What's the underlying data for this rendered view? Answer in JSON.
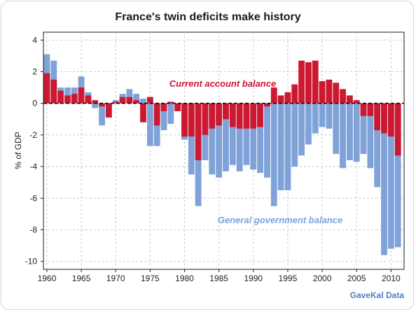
{
  "chart_data": {
    "type": "bar",
    "title": "France's twin deficits make history",
    "ylabel": "% of GDP",
    "xlabel": "",
    "ylim": [
      -10.5,
      4.5
    ],
    "yticks": [
      4,
      2,
      0,
      -2,
      -4,
      -6,
      -8,
      -10
    ],
    "xticks": [
      1960,
      1965,
      1970,
      1975,
      1980,
      1985,
      1990,
      1995,
      2000,
      2005,
      2010
    ],
    "grid": true,
    "legend": "none",
    "annotations": {
      "current_account": "Current account balance",
      "general_government": "General government balance"
    },
    "source": "GaveKal Data",
    "colors": {
      "current_account": "#cc1830",
      "general_government": "#7fa3d8"
    },
    "x": [
      1960,
      1961,
      1962,
      1963,
      1964,
      1965,
      1966,
      1967,
      1968,
      1969,
      1970,
      1971,
      1972,
      1973,
      1974,
      1975,
      1976,
      1977,
      1978,
      1979,
      1980,
      1981,
      1982,
      1983,
      1984,
      1985,
      1986,
      1987,
      1988,
      1989,
      1990,
      1991,
      1992,
      1993,
      1994,
      1995,
      1996,
      1997,
      1998,
      1999,
      2000,
      2001,
      2002,
      2003,
      2004,
      2005,
      2006,
      2007,
      2008,
      2009,
      2010,
      2011
    ],
    "series": [
      {
        "name": "Current account balance",
        "values": [
          1.9,
          1.5,
          0.8,
          0.5,
          0.6,
          1.0,
          0.5,
          0.2,
          -0.2,
          -0.9,
          0.1,
          0.4,
          0.4,
          0.2,
          -1.2,
          0.4,
          -1.4,
          -0.5,
          0.1,
          -0.5,
          -2.1,
          -2.1,
          -3.6,
          -2.0,
          -1.6,
          -1.4,
          -1.0,
          -1.5,
          -1.6,
          -1.6,
          -1.6,
          -1.5,
          -0.2,
          1.0,
          0.5,
          0.7,
          1.2,
          2.7,
          2.6,
          2.7,
          1.4,
          1.5,
          1.3,
          0.9,
          0.5,
          0.2,
          -0.8,
          -0.8,
          -1.7,
          -1.9,
          -2.1,
          -3.3
        ]
      },
      {
        "name": "General government balance",
        "values": [
          3.1,
          2.7,
          1.0,
          1.0,
          1.0,
          1.7,
          0.7,
          -0.3,
          -1.4,
          -0.1,
          0.2,
          0.6,
          0.9,
          0.6,
          0.3,
          -2.7,
          -2.7,
          -1.7,
          -1.3,
          -0.5,
          -2.3,
          -4.5,
          -6.5,
          -3.6,
          -4.5,
          -4.7,
          -4.3,
          -3.9,
          -4.3,
          -3.9,
          -4.2,
          -4.4,
          -4.7,
          -6.5,
          -5.5,
          -5.5,
          -4.0,
          -3.3,
          -2.6,
          -1.9,
          -1.5,
          -1.6,
          -3.2,
          -4.1,
          -3.6,
          -3.7,
          -3.2,
          -4.1,
          -5.3,
          -9.6,
          -9.2,
          -9.1
        ]
      }
    ]
  }
}
